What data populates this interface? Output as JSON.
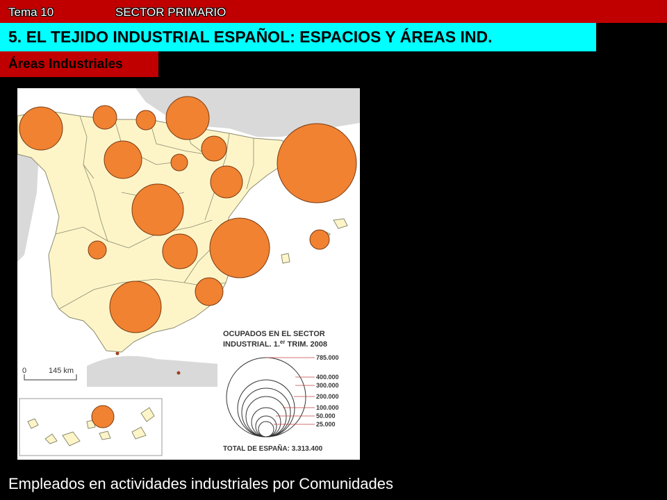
{
  "header": {
    "tema": "Tema 10",
    "sector": "SECTOR PRIMARIO",
    "title": "5. EL TEJIDO INDUSTRIAL ESPAÑOL: ESPACIOS Y ÁREAS IND.",
    "subtitle": "Áreas Industriales"
  },
  "map": {
    "legend": {
      "title_line1": "OCUPADOS EN EL SECTOR",
      "title_line2": "INDUSTRIAL. 1.",
      "title_sup": "er",
      "title_end": " TRIM. 2008",
      "values": [
        "785.000",
        "400.000",
        "300.000",
        "200.000",
        "100.000",
        "50.000",
        "25.000"
      ],
      "total": "TOTAL DE ESPAÑA: 3.313.400"
    },
    "scale": {
      "zero": "0",
      "distance": "145 km"
    },
    "colors": {
      "land": "#fdf5c8",
      "sea": "#ffffff",
      "outside": "#d9d9d9",
      "bubble": "#f08232",
      "border": "#8a8a70"
    }
  },
  "caption": "Empleados en actividades industriales por Comunidades"
}
